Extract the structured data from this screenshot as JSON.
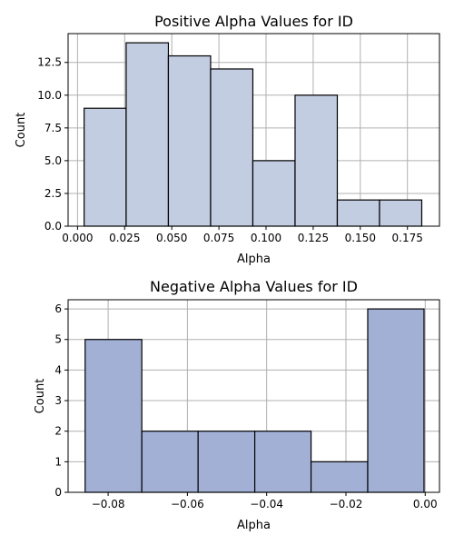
{
  "chart_data": [
    {
      "type": "bar",
      "title": "Positive Alpha Values for ID",
      "xlabel": "Alpha",
      "ylabel": "Count",
      "bin_edges": [
        0.0035,
        0.0258,
        0.0482,
        0.0706,
        0.093,
        0.1154,
        0.1378,
        0.1602,
        0.1826
      ],
      "values": [
        9,
        14,
        13,
        12,
        5,
        10,
        2,
        2
      ],
      "xlim": [
        -0.005,
        0.192
      ],
      "ylim": [
        0,
        14.7
      ],
      "xticks": [
        0.0,
        0.025,
        0.05,
        0.075,
        0.1,
        0.125,
        0.15,
        0.175
      ],
      "xtick_labels": [
        "0.000",
        "0.025",
        "0.050",
        "0.075",
        "0.100",
        "0.125",
        "0.150",
        "0.175"
      ],
      "yticks": [
        0,
        2.5,
        5,
        7.5,
        10,
        12.5
      ],
      "ytick_labels": [
        "0.0",
        "2.5",
        "5.0",
        "7.5",
        "10.0",
        "12.5"
      ],
      "bar_color": "#c3cde1",
      "grid": true
    },
    {
      "type": "bar",
      "title": "Negative Alpha Values for ID",
      "xlabel": "Alpha",
      "ylabel": "Count",
      "bin_edges": [
        -0.0858,
        -0.0715,
        -0.0573,
        -0.043,
        -0.0288,
        -0.0145,
        -0.0003
      ],
      "values": [
        5,
        2,
        2,
        2,
        1,
        6
      ],
      "xlim": [
        -0.0901,
        0.0036
      ],
      "ylim": [
        0,
        6.3
      ],
      "xticks": [
        -0.08,
        -0.06,
        -0.04,
        -0.02,
        0.0
      ],
      "xtick_labels": [
        "−0.08",
        "−0.06",
        "−0.04",
        "−0.02",
        "0.00"
      ],
      "yticks": [
        0,
        1,
        2,
        3,
        4,
        5,
        6
      ],
      "ytick_labels": [
        "0",
        "1",
        "2",
        "3",
        "4",
        "5",
        "6"
      ],
      "bar_color": "#a3b0d6",
      "grid": true
    }
  ]
}
